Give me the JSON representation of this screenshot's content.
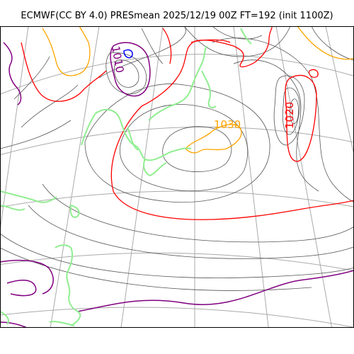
{
  "title": "ECMWF(CC BY 4.0) PRESmean 2025/12/19 00Z FT=192 (init 1100Z)",
  "contour_labels": {
    "low": "1010",
    "mid_high": "1030",
    "high": "1020"
  },
  "colors": {
    "isobar_thin": "#555555",
    "isobar_1020": "#ff0000",
    "isobar_1010": "#800080",
    "isobar_1030": "#ffa500",
    "isobar_1000": "#0000ff",
    "coastline": "#90ee90",
    "graticule": "#aaaaaa",
    "frame": "#000000"
  }
}
